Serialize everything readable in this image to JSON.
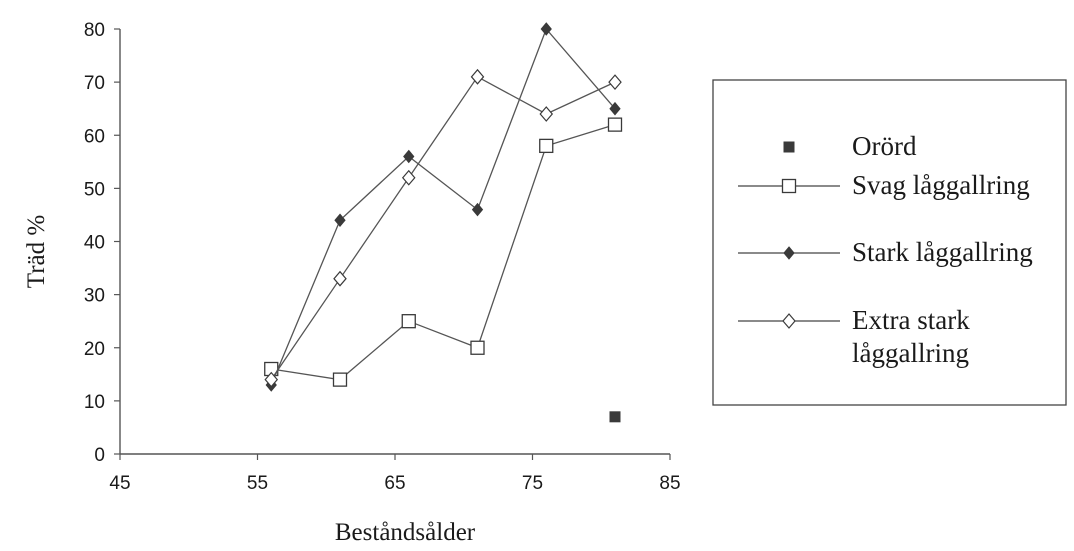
{
  "chart_data": {
    "type": "line",
    "xlabel": "Beståndsålder",
    "ylabel": "Träd %",
    "xlim": [
      45,
      85
    ],
    "ylim": [
      0,
      80
    ],
    "xticks": [
      45,
      55,
      65,
      75,
      85
    ],
    "yticks": [
      0,
      10,
      20,
      30,
      40,
      50,
      60,
      70,
      80
    ],
    "grid": false,
    "legend_position": "right",
    "series": [
      {
        "name": "Orörd",
        "marker": "filled-square",
        "line": false,
        "points": [
          {
            "x": 81,
            "y": 7
          }
        ]
      },
      {
        "name": "Svag låggallring",
        "marker": "open-square",
        "line": true,
        "points": [
          {
            "x": 56,
            "y": 16
          },
          {
            "x": 61,
            "y": 14
          },
          {
            "x": 66,
            "y": 25
          },
          {
            "x": 71,
            "y": 20
          },
          {
            "x": 76,
            "y": 58
          },
          {
            "x": 81,
            "y": 62
          }
        ]
      },
      {
        "name": "Stark låggallring",
        "marker": "filled-diamond",
        "line": true,
        "points": [
          {
            "x": 56,
            "y": 13
          },
          {
            "x": 61,
            "y": 44
          },
          {
            "x": 66,
            "y": 56
          },
          {
            "x": 71,
            "y": 46
          },
          {
            "x": 76,
            "y": 80
          },
          {
            "x": 81,
            "y": 65
          }
        ]
      },
      {
        "name": "Extra stark\nlåggallring",
        "marker": "open-diamond",
        "line": true,
        "points": [
          {
            "x": 56,
            "y": 14
          },
          {
            "x": 61,
            "y": 33
          },
          {
            "x": 66,
            "y": 52
          },
          {
            "x": 71,
            "y": 71
          },
          {
            "x": 76,
            "y": 64
          },
          {
            "x": 81,
            "y": 70
          }
        ]
      }
    ]
  }
}
